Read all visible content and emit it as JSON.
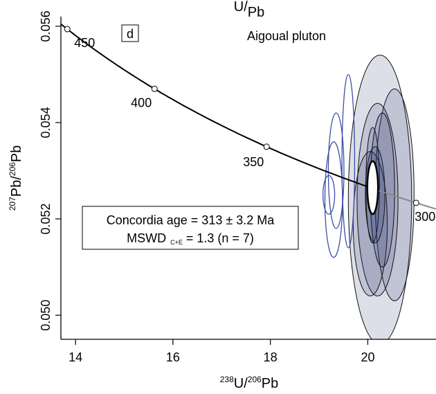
{
  "chart_data": {
    "type": "scatter",
    "subtype": "concordia-diagram",
    "panel_label": "d",
    "title": "Aigoual pluton",
    "xlabel": {
      "pre": "238",
      "base1": "U/",
      "sup2": "206",
      "base2": "Pb"
    },
    "ylabel": {
      "pre": "207",
      "base1": "Pb/",
      "sup2": "206",
      "base2": "Pb"
    },
    "top_label": {
      "pre": "",
      "base1": "U/",
      "sup2": "",
      "base2": "Pb"
    },
    "xlim": [
      13.7,
      21.4
    ],
    "ylim": [
      0.0495,
      0.0562
    ],
    "xticks": [
      14,
      16,
      18,
      20
    ],
    "yticks": [
      0.05,
      0.052,
      0.054,
      0.056
    ],
    "ytick_labels": [
      "0.050",
      "0.052",
      "0.054",
      "0.056"
    ],
    "concordia_ages": [
      {
        "age_ma": 450,
        "label": "450"
      },
      {
        "age_ma": 400,
        "label": "400"
      },
      {
        "age_ma": 350,
        "label": "350"
      },
      {
        "age_ma": 300,
        "label": "300"
      }
    ],
    "concordia_curve_ages_ma": [
      460,
      250
    ],
    "ellipses_excluded": [
      {
        "x": 19.3,
        "y": 0.0524,
        "rx": 0.18,
        "ry": 0.0012
      },
      {
        "x": 19.2,
        "y": 0.0525,
        "rx": 0.12,
        "ry": 0.0004
      },
      {
        "x": 19.35,
        "y": 0.053,
        "rx": 0.16,
        "ry": 0.0012
      },
      {
        "x": 19.6,
        "y": 0.0532,
        "rx": 0.13,
        "ry": 0.0018
      }
    ],
    "ellipses_included": [
      {
        "x": 20.25,
        "y": 0.0524,
        "rx": 0.65,
        "ry": 0.003
      },
      {
        "x": 20.55,
        "y": 0.0525,
        "rx": 0.4,
        "ry": 0.0022
      },
      {
        "x": 20.2,
        "y": 0.0524,
        "rx": 0.42,
        "ry": 0.002
      },
      {
        "x": 20.05,
        "y": 0.0519,
        "rx": 0.35,
        "ry": 0.0015
      },
      {
        "x": 20.15,
        "y": 0.0525,
        "rx": 0.2,
        "ry": 0.001
      },
      {
        "x": 20.1,
        "y": 0.0527,
        "rx": 0.14,
        "ry": 0.0012
      },
      {
        "x": 20.3,
        "y": 0.0526,
        "rx": 0.25,
        "ry": 0.0016
      }
    ],
    "concordia_age_ellipse": {
      "x": 20.1,
      "y": 0.05265,
      "rx": 0.11,
      "ry": 0.00055
    },
    "stats": {
      "line1": "Concordia age = 313 ± 3.2 Ma",
      "line2_base": "MSWD",
      "line2_sub": "C+E",
      "line2_rest": " = 1.3 (n = 7)"
    },
    "colors": {
      "excluded_stroke": "#3a4ea8",
      "included_fill": "#2e3a6e",
      "included_stroke": "#111111",
      "curve": "#000000",
      "curve_after": "#888888"
    }
  }
}
